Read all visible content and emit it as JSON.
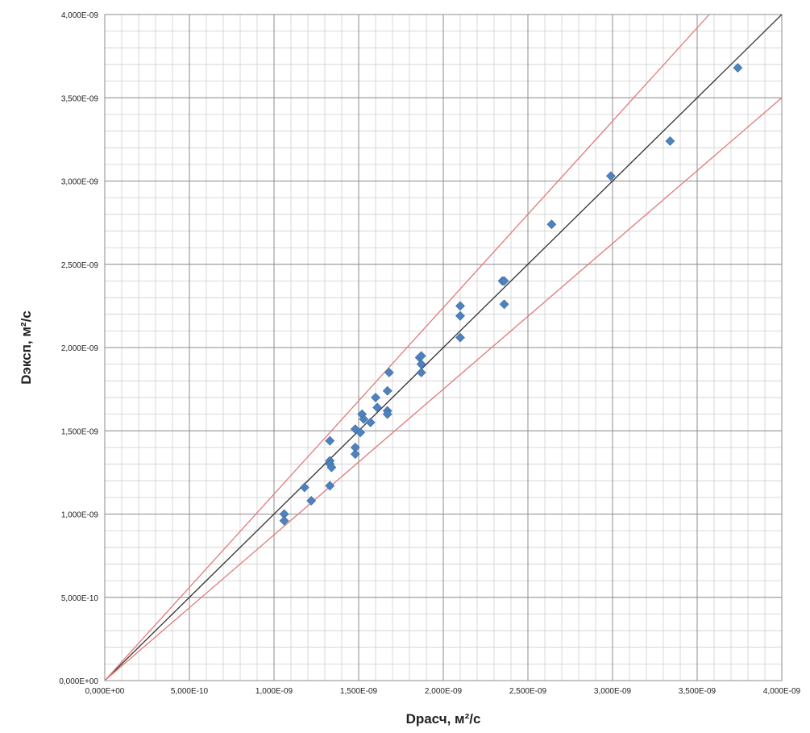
{
  "chart_data": {
    "type": "scatter",
    "title": "",
    "xlabel": "Dрасч, м²/с",
    "ylabel": "Dэксп, м²/с",
    "xlim": [
      0,
      4e-09
    ],
    "ylim": [
      0,
      4e-09
    ],
    "grid": true,
    "major_step": 5e-10,
    "minor_step": 1e-10,
    "x_ticks": [
      0,
      5e-10,
      1e-09,
      1.5e-09,
      2e-09,
      2.5e-09,
      3e-09,
      3.5e-09,
      4e-09
    ],
    "x_tick_labels": [
      "0,000E+00",
      "5,000E-10",
      "1,000E-09",
      "1,500E-09",
      "2,000E-09",
      "2,500E-09",
      "3,000E-09",
      "3,500E-09",
      "4,000E-09"
    ],
    "y_ticks": [
      0,
      5e-10,
      1e-09,
      1.5e-09,
      2e-09,
      2.5e-09,
      3e-09,
      3.5e-09,
      4e-09
    ],
    "y_tick_labels": [
      "0,000E+00",
      "5,000E-10",
      "1,000E-09",
      "1,500E-09",
      "2,000E-09",
      "2,500E-09",
      "3,000E-09",
      "3,500E-09",
      "4,000E-09"
    ],
    "lines": [
      {
        "slope": 1.0,
        "color": "#333333"
      },
      {
        "slope": 1.12,
        "color": "#e07a7a"
      },
      {
        "slope": 0.875,
        "color": "#e07a7a"
      }
    ],
    "marker_color": "#4f81bd",
    "points": [
      {
        "x": 1.06e-09,
        "y": 1e-09
      },
      {
        "x": 1.06e-09,
        "y": 9.6e-10
      },
      {
        "x": 1.18e-09,
        "y": 1.16e-09
      },
      {
        "x": 1.22e-09,
        "y": 1.08e-09
      },
      {
        "x": 1.33e-09,
        "y": 1.44e-09
      },
      {
        "x": 1.33e-09,
        "y": 1.32e-09
      },
      {
        "x": 1.33e-09,
        "y": 1.3e-09
      },
      {
        "x": 1.34e-09,
        "y": 1.28e-09
      },
      {
        "x": 1.33e-09,
        "y": 1.17e-09
      },
      {
        "x": 1.48e-09,
        "y": 1.51e-09
      },
      {
        "x": 1.48e-09,
        "y": 1.4e-09
      },
      {
        "x": 1.48e-09,
        "y": 1.36e-09
      },
      {
        "x": 1.51e-09,
        "y": 1.49e-09
      },
      {
        "x": 1.52e-09,
        "y": 1.6e-09
      },
      {
        "x": 1.53e-09,
        "y": 1.57e-09
      },
      {
        "x": 1.57e-09,
        "y": 1.55e-09
      },
      {
        "x": 1.6e-09,
        "y": 1.7e-09
      },
      {
        "x": 1.61e-09,
        "y": 1.64e-09
      },
      {
        "x": 1.67e-09,
        "y": 1.74e-09
      },
      {
        "x": 1.67e-09,
        "y": 1.62e-09
      },
      {
        "x": 1.67e-09,
        "y": 1.6e-09
      },
      {
        "x": 1.68e-09,
        "y": 1.85e-09
      },
      {
        "x": 1.86e-09,
        "y": 1.94e-09
      },
      {
        "x": 1.87e-09,
        "y": 1.95e-09
      },
      {
        "x": 1.87e-09,
        "y": 1.9e-09
      },
      {
        "x": 1.87e-09,
        "y": 1.85e-09
      },
      {
        "x": 2.1e-09,
        "y": 2.25e-09
      },
      {
        "x": 2.1e-09,
        "y": 2.19e-09
      },
      {
        "x": 2.1e-09,
        "y": 2.06e-09
      },
      {
        "x": 2.35e-09,
        "y": 2.4e-09
      },
      {
        "x": 2.36e-09,
        "y": 2.4e-09
      },
      {
        "x": 2.36e-09,
        "y": 2.26e-09
      },
      {
        "x": 2.64e-09,
        "y": 2.74e-09
      },
      {
        "x": 2.99e-09,
        "y": 3.03e-09
      },
      {
        "x": 3.34e-09,
        "y": 3.24e-09
      },
      {
        "x": 3.74e-09,
        "y": 3.68e-09
      }
    ]
  }
}
